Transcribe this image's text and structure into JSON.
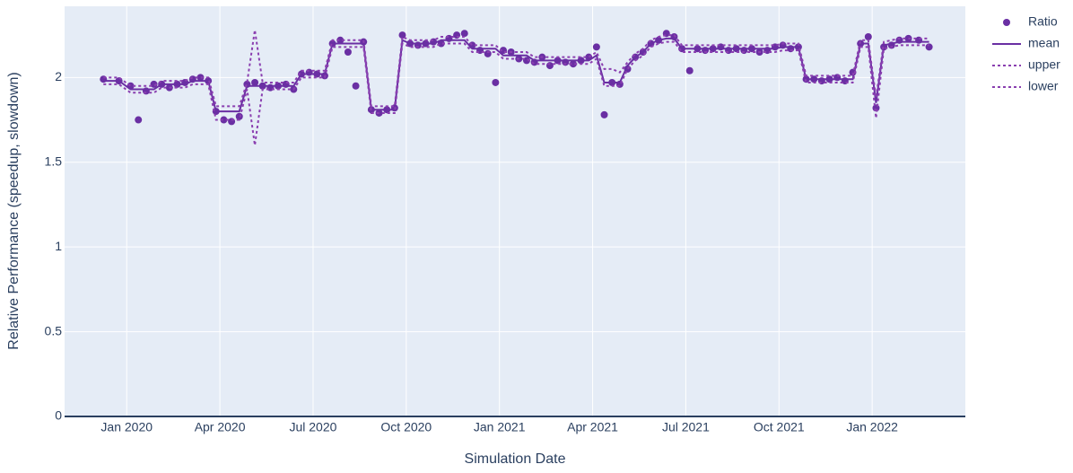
{
  "chart_data": {
    "type": "scatter-line",
    "x_label": "Simulation Date",
    "y_label": "Relative Performance (speedup, slowdown)",
    "x": [
      "2019-12",
      "2019-12",
      "2020-01",
      "2020-01",
      "2020-01",
      "2020-01",
      "2020-02",
      "2020-02",
      "2020-02",
      "2020-02",
      "2020-03",
      "2020-03",
      "2020-03",
      "2020-03",
      "2020-04",
      "2020-04",
      "2020-04",
      "2020-04",
      "2020-05",
      "2020-05",
      "2020-05",
      "2020-05",
      "2020-06",
      "2020-06",
      "2020-06",
      "2020-06",
      "2020-07",
      "2020-07",
      "2020-07",
      "2020-07",
      "2020-08",
      "2020-08",
      "2020-08",
      "2020-08",
      "2020-09",
      "2020-09",
      "2020-09",
      "2020-09",
      "2020-10",
      "2020-10",
      "2020-10",
      "2020-10",
      "2020-11",
      "2020-11",
      "2020-11",
      "2020-11",
      "2020-12",
      "2020-12",
      "2020-12",
      "2020-12",
      "2021-01",
      "2021-01",
      "2021-01",
      "2021-01",
      "2021-02",
      "2021-02",
      "2021-02",
      "2021-02",
      "2021-03",
      "2021-03",
      "2021-03",
      "2021-03",
      "2021-04",
      "2021-04",
      "2021-04",
      "2021-04",
      "2021-05",
      "2021-05",
      "2021-05",
      "2021-05",
      "2021-06",
      "2021-06",
      "2021-06",
      "2021-06",
      "2021-07",
      "2021-07",
      "2021-07",
      "2021-07",
      "2021-08",
      "2021-08",
      "2021-08",
      "2021-08",
      "2021-09",
      "2021-09",
      "2021-09",
      "2021-09",
      "2021-10",
      "2021-10",
      "2021-10",
      "2021-10",
      "2021-11",
      "2021-11",
      "2021-11",
      "2021-11",
      "2021-12",
      "2021-12",
      "2021-12",
      "2021-12",
      "2022-01",
      "2022-01",
      "2022-01",
      "2022-01",
      "2022-02",
      "2022-02",
      "2022-02"
    ],
    "series": [
      {
        "name": "Ratio",
        "mode": "markers",
        "color": "#6a2fa3",
        "values": [
          1.99,
          1.98,
          1.95,
          1.75,
          1.92,
          1.96,
          1.96,
          1.94,
          1.96,
          1.97,
          1.99,
          2.0,
          1.98,
          1.8,
          1.75,
          1.74,
          1.77,
          1.96,
          1.97,
          1.95,
          1.94,
          1.95,
          1.96,
          1.93,
          2.02,
          2.03,
          2.02,
          2.01,
          2.2,
          2.22,
          2.15,
          1.95,
          2.21,
          1.81,
          1.79,
          1.81,
          1.82,
          2.25,
          2.2,
          2.19,
          2.2,
          2.21,
          2.2,
          2.23,
          2.25,
          2.26,
          2.19,
          2.16,
          2.14,
          1.97,
          2.16,
          2.15,
          2.11,
          2.1,
          2.09,
          2.12,
          2.07,
          2.1,
          2.09,
          2.08,
          2.1,
          2.12,
          2.18,
          1.78,
          1.97,
          1.96,
          2.05,
          2.12,
          2.15,
          2.2,
          2.22,
          2.26,
          2.24,
          2.17,
          2.04,
          2.17,
          2.16,
          2.17,
          2.18,
          2.16,
          2.17,
          2.16,
          2.17,
          2.15,
          2.16,
          2.18,
          2.19,
          2.17,
          2.18,
          1.99,
          1.99,
          1.98,
          1.99,
          2.0,
          1.98,
          2.03,
          2.2,
          2.24,
          1.82,
          2.18,
          2.19,
          2.22,
          2.23,
          2.22,
          2.18
        ]
      },
      {
        "name": "mean",
        "mode": "lines",
        "dash": "solid",
        "color": "#6a2fa3",
        "values": [
          1.98,
          1.98,
          1.93,
          1.93,
          1.93,
          1.93,
          1.96,
          1.96,
          1.96,
          1.96,
          1.98,
          1.98,
          1.98,
          1.8,
          1.8,
          1.8,
          1.8,
          1.95,
          1.95,
          1.95,
          1.95,
          1.95,
          1.95,
          1.95,
          2.02,
          2.02,
          2.02,
          2.02,
          2.2,
          2.2,
          2.2,
          2.2,
          2.2,
          1.81,
          1.81,
          1.81,
          1.81,
          2.22,
          2.2,
          2.2,
          2.2,
          2.2,
          2.22,
          2.22,
          2.22,
          2.22,
          2.17,
          2.17,
          2.17,
          2.17,
          2.13,
          2.13,
          2.13,
          2.13,
          2.1,
          2.1,
          2.1,
          2.1,
          2.1,
          2.1,
          2.1,
          2.1,
          2.13,
          1.97,
          1.97,
          1.97,
          2.07,
          2.12,
          2.15,
          2.2,
          2.22,
          2.23,
          2.23,
          2.17,
          2.17,
          2.17,
          2.17,
          2.17,
          2.17,
          2.17,
          2.17,
          2.17,
          2.17,
          2.17,
          2.17,
          2.17,
          2.18,
          2.18,
          2.18,
          1.99,
          1.99,
          1.99,
          1.99,
          1.99,
          1.99,
          1.99,
          2.2,
          2.2,
          1.85,
          2.19,
          2.2,
          2.21,
          2.21,
          2.21,
          2.21
        ]
      },
      {
        "name": "upper",
        "mode": "lines",
        "dash": "dot",
        "color": "#8a3fb0",
        "values": [
          2.0,
          2.0,
          1.95,
          1.95,
          1.95,
          1.95,
          1.98,
          1.98,
          1.98,
          1.98,
          2.0,
          2.0,
          2.0,
          1.83,
          1.83,
          1.83,
          1.83,
          1.97,
          2.28,
          1.97,
          1.97,
          1.97,
          1.97,
          1.97,
          2.04,
          2.04,
          2.04,
          2.04,
          2.22,
          2.22,
          2.22,
          2.22,
          2.22,
          1.83,
          1.83,
          1.83,
          1.83,
          2.24,
          2.22,
          2.22,
          2.22,
          2.22,
          2.24,
          2.24,
          2.24,
          2.24,
          2.19,
          2.19,
          2.19,
          2.19,
          2.15,
          2.15,
          2.15,
          2.15,
          2.12,
          2.12,
          2.12,
          2.12,
          2.12,
          2.12,
          2.12,
          2.12,
          2.15,
          2.05,
          2.05,
          2.03,
          2.09,
          2.14,
          2.17,
          2.22,
          2.24,
          2.25,
          2.25,
          2.19,
          2.19,
          2.19,
          2.19,
          2.19,
          2.19,
          2.19,
          2.19,
          2.19,
          2.19,
          2.19,
          2.19,
          2.19,
          2.2,
          2.2,
          2.2,
          2.01,
          2.01,
          2.01,
          2.01,
          2.01,
          2.01,
          2.01,
          2.22,
          2.22,
          1.88,
          2.21,
          2.22,
          2.23,
          2.23,
          2.23,
          2.23
        ]
      },
      {
        "name": "lower",
        "mode": "lines",
        "dash": "dot",
        "color": "#8a3fb0",
        "values": [
          1.96,
          1.96,
          1.91,
          1.91,
          1.91,
          1.91,
          1.94,
          1.94,
          1.94,
          1.94,
          1.96,
          1.96,
          1.96,
          1.75,
          1.75,
          1.75,
          1.75,
          1.93,
          1.6,
          1.93,
          1.93,
          1.93,
          1.93,
          1.93,
          2.0,
          2.0,
          2.0,
          2.0,
          2.18,
          2.18,
          2.18,
          2.18,
          2.18,
          1.79,
          1.79,
          1.79,
          1.79,
          2.2,
          2.18,
          2.18,
          2.18,
          2.18,
          2.2,
          2.2,
          2.2,
          2.2,
          2.15,
          2.15,
          2.15,
          2.15,
          2.11,
          2.11,
          2.11,
          2.11,
          2.08,
          2.08,
          2.08,
          2.08,
          2.08,
          2.08,
          2.08,
          2.08,
          2.11,
          1.95,
          1.95,
          1.95,
          2.05,
          2.1,
          2.13,
          2.18,
          2.2,
          2.21,
          2.21,
          2.15,
          2.15,
          2.15,
          2.15,
          2.15,
          2.15,
          2.15,
          2.15,
          2.15,
          2.15,
          2.15,
          2.15,
          2.15,
          2.16,
          2.16,
          2.16,
          1.97,
          1.97,
          1.97,
          1.97,
          1.97,
          1.97,
          1.97,
          2.18,
          2.18,
          1.76,
          2.17,
          2.18,
          2.19,
          2.19,
          2.19,
          2.19
        ]
      }
    ],
    "xlim": [
      "2019-11",
      "2022-04"
    ],
    "xticks": [
      {
        "value": "2020-01",
        "label": "Jan 2020"
      },
      {
        "value": "2020-04",
        "label": "Apr 2020"
      },
      {
        "value": "2020-07",
        "label": "Jul 2020"
      },
      {
        "value": "2020-10",
        "label": "Oct 2020"
      },
      {
        "value": "2021-01",
        "label": "Jan 2021"
      },
      {
        "value": "2021-04",
        "label": "Apr 2021"
      },
      {
        "value": "2021-07",
        "label": "Jul 2021"
      },
      {
        "value": "2021-10",
        "label": "Oct 2021"
      },
      {
        "value": "2022-01",
        "label": "Jan 2022"
      }
    ],
    "ylim": [
      0,
      2.42
    ],
    "yticks": [
      0,
      0.5,
      1,
      1.5,
      2
    ],
    "grid": true,
    "legend": "right"
  }
}
